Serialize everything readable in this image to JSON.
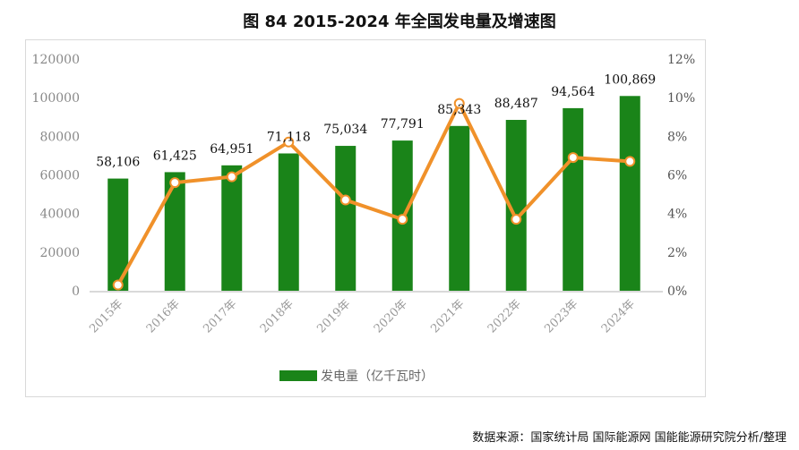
{
  "title": "图  84 2015-2024 年全国发电量及增速图",
  "source": "数据来源：国家统计局 国际能源网 国能能源研究院分析/整理",
  "chart_data": {
    "type": "bar+line",
    "categories": [
      "2015年",
      "2016年",
      "2017年",
      "2018年",
      "2019年",
      "2020年",
      "2021年",
      "2022年",
      "2023年",
      "2024年"
    ],
    "series": [
      {
        "name": "发电量（亿千瓦时）",
        "type": "bar",
        "axis": "left",
        "color": "#1a8419",
        "values": [
          58106,
          61425,
          64951,
          71118,
          75034,
          77791,
          85343,
          88487,
          94564,
          100869
        ],
        "labels": [
          "58,106",
          "61,425",
          "64,951",
          "71,118",
          "75,034",
          "77,791",
          "85,343",
          "88,487",
          "94,564",
          "100,869"
        ]
      },
      {
        "type": "line",
        "axis": "right",
        "color": "#f0912a",
        "values": [
          0.3,
          5.6,
          5.9,
          7.7,
          4.7,
          3.7,
          9.7,
          3.7,
          6.9,
          6.7
        ]
      }
    ],
    "left_axis": {
      "ylim": [
        0,
        120000
      ],
      "ticks": [
        "0",
        "20000",
        "40000",
        "60000",
        "80000",
        "100000",
        "120000"
      ]
    },
    "right_axis": {
      "ylim": [
        0,
        12
      ],
      "ticks": [
        "0%",
        "2%",
        "4%",
        "6%",
        "8%",
        "10%",
        "12%"
      ]
    },
    "grid": false,
    "legend": "bottom"
  }
}
